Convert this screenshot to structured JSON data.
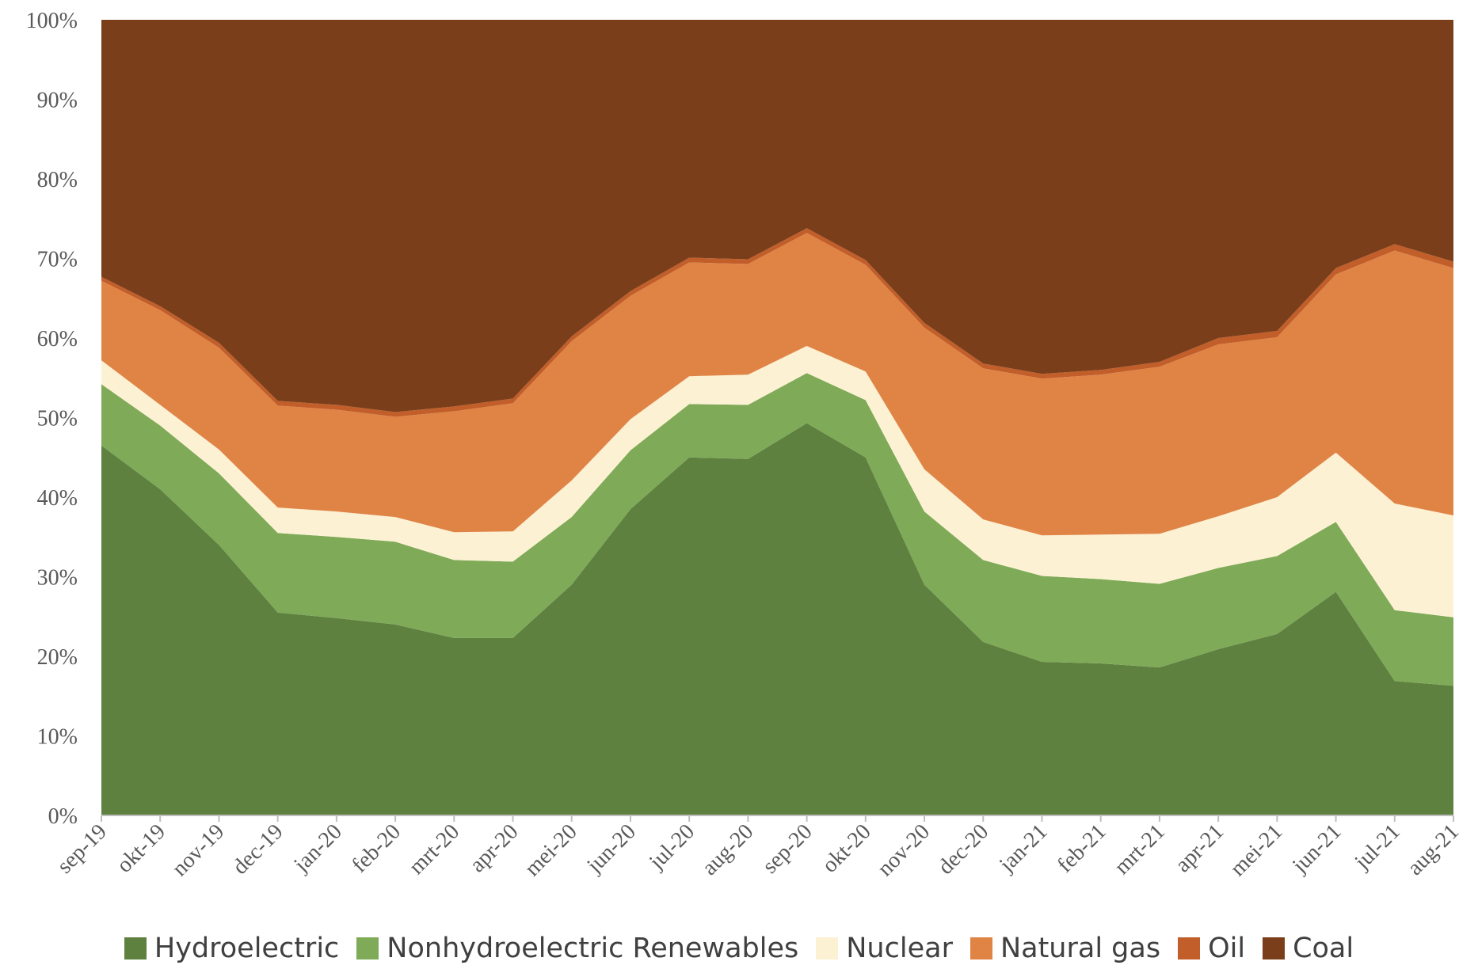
{
  "chart_data": {
    "type": "area",
    "stacked": true,
    "percent": true,
    "categories": [
      "sep-19",
      "okt-19",
      "nov-19",
      "dec-19",
      "jan-20",
      "feb-20",
      "mrt-20",
      "apr-20",
      "mei-20",
      "jun-20",
      "jul-20",
      "aug-20",
      "sep-20",
      "okt-20",
      "nov-20",
      "dec-20",
      "jan-21",
      "feb-21",
      "mrt-21",
      "apr-21",
      "mei-21",
      "jun-21",
      "jul-21",
      "aug-21"
    ],
    "series": [
      {
        "name": "Hydroelectric",
        "color": "#5f8140",
        "values": [
          46.5,
          41,
          34,
          25.5,
          24.8,
          24,
          22.3,
          22.3,
          29,
          38.5,
          45,
          44.8,
          49.3,
          45,
          29,
          21.8,
          19.3,
          19.1,
          18.6,
          20.9,
          22.8,
          28.1,
          16.9,
          16.3
        ]
      },
      {
        "name": "Nonhydroelectric Renewables",
        "color": "#7faa58",
        "values": [
          7.7,
          8,
          9,
          10,
          10.2,
          10.4,
          9.8,
          9.6,
          8.5,
          7.4,
          6.7,
          6.8,
          6.3,
          7.2,
          9.2,
          10.3,
          10.8,
          10.6,
          10.5,
          10.2,
          9.8,
          8.8,
          8.9,
          8.6
        ]
      },
      {
        "name": "Nuclear",
        "color": "#fcf1d3",
        "values": [
          3,
          2.6,
          3,
          3.2,
          3.2,
          3.1,
          3.5,
          3.8,
          4.6,
          3.9,
          3.5,
          3.8,
          3.4,
          3.6,
          5.3,
          5.1,
          5.1,
          5.6,
          6.3,
          6.5,
          7.4,
          8.7,
          13.4,
          12.8
        ]
      },
      {
        "name": "Natural gas",
        "color": "#e08446",
        "values": [
          10,
          11.9,
          12.8,
          12.8,
          12.8,
          12.6,
          15.2,
          16.1,
          17.5,
          15.5,
          14.3,
          13.9,
          14.2,
          13.4,
          17.8,
          19,
          19.7,
          20.1,
          21,
          21.6,
          20.1,
          22.4,
          31.8,
          31.1
        ]
      },
      {
        "name": "Oil",
        "color": "#c15e2a",
        "values": [
          0.5,
          0.5,
          0.6,
          0.6,
          0.6,
          0.6,
          0.6,
          0.6,
          0.6,
          0.6,
          0.6,
          0.6,
          0.6,
          0.6,
          0.6,
          0.6,
          0.6,
          0.6,
          0.6,
          0.8,
          0.8,
          0.8,
          0.8,
          0.8
        ]
      },
      {
        "name": "Coal",
        "color": "#7b3e1a",
        "values": [
          32.3,
          36,
          40.6,
          47.9,
          48.4,
          49.3,
          48.6,
          47.6,
          39.8,
          34.1,
          29.9,
          30.1,
          26.2,
          30.2,
          38.1,
          43.2,
          44.5,
          44,
          43,
          40,
          39.1,
          31.2,
          28.2,
          30.4
        ]
      }
    ],
    "yaxis": {
      "min": 0,
      "max": 100,
      "step": 10,
      "tick_labels": [
        "0%",
        "10%",
        "20%",
        "30%",
        "40%",
        "50%",
        "60%",
        "70%",
        "80%",
        "90%",
        "100%"
      ]
    },
    "xlabel": "",
    "ylabel": "",
    "title": "",
    "legend": "bottom",
    "grid": false
  }
}
